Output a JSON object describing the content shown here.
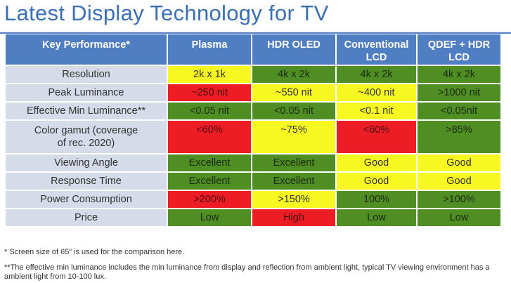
{
  "title": "Latest Display Technology for TV",
  "table": {
    "headers": [
      "Key Performance*",
      "Plasma",
      "HDR OLED",
      "Conventional LCD",
      "QDEF + HDR LCD"
    ],
    "rows": [
      {
        "label": "Resolution",
        "cells": [
          "2k x 1k",
          "4k x 2k",
          "4k x 2k",
          "4k x 2k"
        ],
        "colors": [
          "yellow",
          "green",
          "green",
          "green"
        ]
      },
      {
        "label": "Peak Luminance",
        "cells": [
          "~250 nit",
          "~550 nit",
          "~400 nit",
          ">1000 nit"
        ],
        "colors": [
          "red",
          "yellow",
          "yellow",
          "green"
        ]
      },
      {
        "label": "Effective Min Luminance**",
        "cells": [
          "<0.05 nit",
          "<0.05 nit",
          "<0.1 nit",
          "<0.05nit"
        ],
        "colors": [
          "green",
          "green",
          "yellow",
          "green"
        ]
      },
      {
        "label": "Color gamut (coverage of rec. 2020)",
        "cells": [
          "<60%",
          "~75%",
          "<60%",
          ">85%"
        ],
        "colors": [
          "red",
          "yellow",
          "red",
          "green"
        ]
      },
      {
        "label": "Viewing Angle",
        "cells": [
          "Excellent",
          "Excellent",
          "Good",
          "Good"
        ],
        "colors": [
          "green",
          "green",
          "yellow",
          "yellow"
        ]
      },
      {
        "label": "Response Time",
        "cells": [
          "Excellent",
          "Excellent",
          "Good",
          "Good"
        ],
        "colors": [
          "green",
          "green",
          "yellow",
          "yellow"
        ]
      },
      {
        "label": "Power Consumption",
        "cells": [
          ">200%",
          ">150%",
          "100%",
          ">100%"
        ],
        "colors": [
          "red",
          "yellow",
          "green",
          "green"
        ]
      },
      {
        "label": "Price",
        "cells": [
          "Low",
          "High",
          "Low",
          "Low"
        ],
        "colors": [
          "green",
          "red",
          "green",
          "green"
        ]
      }
    ]
  },
  "notes": {
    "note1": "* Screen size of 65” is used for the comparison here.",
    "note2": "**The effective min luminance includes the min luminance from display and reflection from ambient light, typical TV viewing environment has a ambient light from 10-100 lux."
  },
  "colors": {
    "accent": "#4f7fc2",
    "label_bg": "#d5dbe8",
    "green": "#4e8e22",
    "yellow": "#f7f722",
    "red": "#ee1c25"
  }
}
